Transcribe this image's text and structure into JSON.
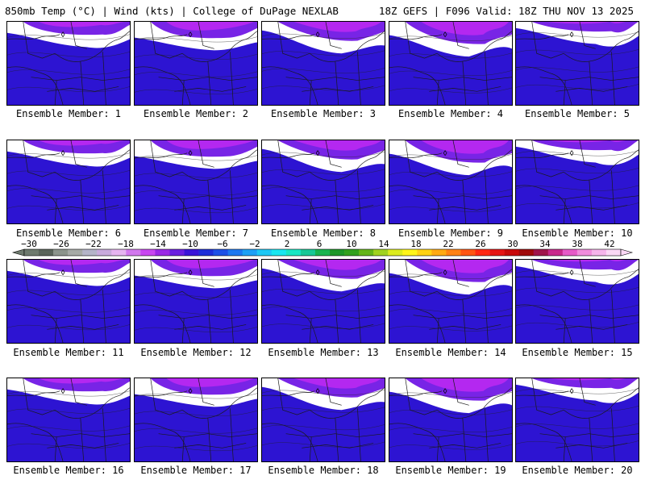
{
  "header": {
    "left": "850mb Temp (°C) | Wind (kts) | College of DuPage NEXLAB",
    "right": "18Z GEFS | F096 Valid: 18Z THU NOV 13 2025"
  },
  "caption_prefix": "Ensemble Member:",
  "members": [
    "1",
    "2",
    "3",
    "4",
    "5",
    "6",
    "7",
    "8",
    "9",
    "10",
    "11",
    "12",
    "13",
    "14",
    "15",
    "16",
    "17",
    "18",
    "19",
    "20"
  ],
  "colorbar": {
    "tick_labels": [
      "−30",
      "−26",
      "−22",
      "−18",
      "−14",
      "−10",
      "−6",
      "−2",
      "2",
      "6",
      "10",
      "14",
      "18",
      "22",
      "26",
      "30",
      "34",
      "38",
      "42"
    ],
    "colors": [
      "#6e7a6e",
      "#5a645a",
      "#8c948c",
      "#a6aaa6",
      "#b4b4c8",
      "#c8aadc",
      "#e6b4f0",
      "#d278ee",
      "#c846f0",
      "#9b28e6",
      "#6a1ee0",
      "#3a14d8",
      "#1e2ed8",
      "#1e50e6",
      "#1e78f0",
      "#1ea0f5",
      "#1ec8f5",
      "#19e6f0",
      "#19e6c3",
      "#19c896",
      "#19b450",
      "#1e9628",
      "#32a01e",
      "#64b419",
      "#a0d21e",
      "#dceb1e",
      "#fff519",
      "#ffd214",
      "#ffaa14",
      "#ff8214",
      "#ff5514",
      "#ff2814",
      "#e61414",
      "#c80a0a",
      "#a00a0a",
      "#a0144b",
      "#c8288c",
      "#e65ac8",
      "#f08cdc",
      "#f5b4eb",
      "#fad7f5"
    ]
  },
  "map_colors": {
    "magenta": "#b428f0",
    "violet": "#7824e6",
    "deep_blue": "#2d14d2",
    "royal_blue": "#2846dc",
    "mid_blue": "#2864eb",
    "sky_blue": "#1e96f0",
    "cyan": "#19c8eb",
    "aqua": "#1ee1c8",
    "green": "#19b464"
  }
}
